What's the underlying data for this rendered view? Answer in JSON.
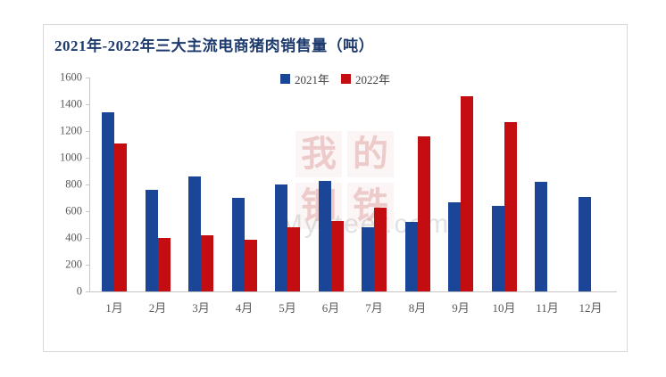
{
  "card": {
    "title": "2021年-2022年三大主流电商猪肉销售量（吨）"
  },
  "chart_data": {
    "type": "bar",
    "title": "2021年-2022年三大主流电商猪肉销售量（吨）",
    "categories": [
      "1月",
      "2月",
      "3月",
      "4月",
      "5月",
      "6月",
      "7月",
      "8月",
      "9月",
      "10月",
      "11月",
      "12月"
    ],
    "series": [
      {
        "name": "2021年",
        "color": "#1b4596",
        "values": [
          1340,
          760,
          860,
          700,
          800,
          830,
          480,
          520,
          670,
          640,
          820,
          710
        ]
      },
      {
        "name": "2022年",
        "color": "#c40d11",
        "values": [
          1110,
          400,
          420,
          390,
          480,
          530,
          630,
          1160,
          1460,
          1270,
          null,
          null
        ]
      }
    ],
    "xlabel": "",
    "ylabel": "",
    "ylim": [
      0,
      1600
    ],
    "ytick_step": 200,
    "grid": false,
    "legend_position": "top-center"
  },
  "watermark": {
    "chars": [
      "我",
      "的",
      "钢",
      "铁"
    ],
    "text": "Mysteel.com"
  },
  "colors": {
    "title": "#1d3a6e",
    "axis_line": "#c6c6c6",
    "axis_label": "#595959",
    "series_2021": "#1b4596",
    "series_2022": "#c40d11",
    "card_border": "#d9d9d9",
    "background": "#ffffff"
  }
}
